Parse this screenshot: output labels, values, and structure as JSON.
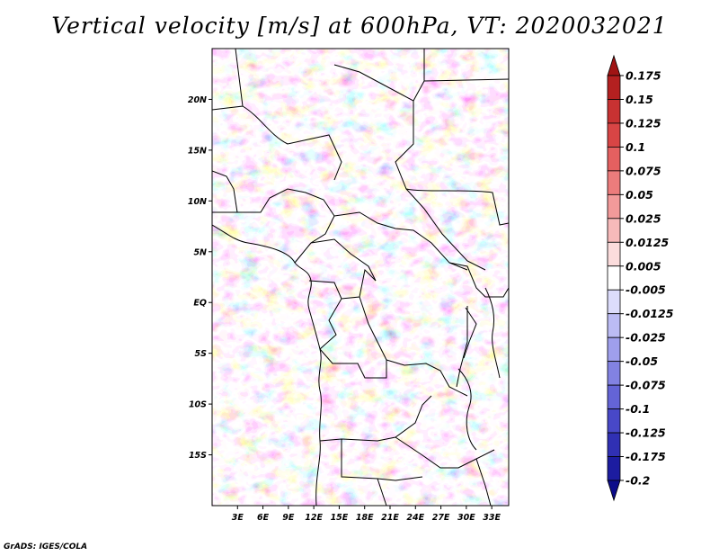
{
  "title": "Vertical velocity [m/s] at 600hPa, VT: 2020032021",
  "credit": "GrADS: IGES/COLA",
  "chart_data": {
    "type": "heatmap",
    "title": "Vertical velocity [m/s] at 600hPa, VT: 2020032021",
    "variable": "vertical velocity",
    "units": "m/s",
    "level": "600hPa",
    "valid_time": "2020032021",
    "lon_range": [
      0,
      35
    ],
    "lat_range": [
      -20,
      25
    ],
    "lat_ticks": [
      {
        "value": 20,
        "label": "20N"
      },
      {
        "value": 15,
        "label": "15N"
      },
      {
        "value": 10,
        "label": "10N"
      },
      {
        "value": 5,
        "label": "5N"
      },
      {
        "value": 0,
        "label": "EQ"
      },
      {
        "value": -5,
        "label": "5S"
      },
      {
        "value": -10,
        "label": "10S"
      },
      {
        "value": -15,
        "label": "15S"
      }
    ],
    "lon_ticks": [
      {
        "value": 3,
        "label": "3E"
      },
      {
        "value": 6,
        "label": "6E"
      },
      {
        "value": 9,
        "label": "9E"
      },
      {
        "value": 12,
        "label": "12E"
      },
      {
        "value": 15,
        "label": "15E"
      },
      {
        "value": 18,
        "label": "18E"
      },
      {
        "value": 21,
        "label": "21E"
      },
      {
        "value": 24,
        "label": "24E"
      },
      {
        "value": 27,
        "label": "27E"
      },
      {
        "value": 30,
        "label": "30E"
      },
      {
        "value": 33,
        "label": "33E"
      }
    ],
    "colorbar": {
      "labels": [
        "0.175",
        "0.15",
        "0.125",
        "0.1",
        "0.075",
        "0.05",
        "0.025",
        "0.0125",
        "0.005",
        "-0.005",
        "-0.0125",
        "-0.025",
        "-0.05",
        "-0.075",
        "-0.1",
        "-0.125",
        "-0.175",
        "-0.2"
      ],
      "colors": [
        "#a01414",
        "#b42020",
        "#c83232",
        "#d84545",
        "#e46060",
        "#ec7c7c",
        "#f29a9a",
        "#f7baba",
        "#fbdcdc",
        "#ffffff",
        "#dcdcfb",
        "#bcbcf4",
        "#9f9fec",
        "#8282e2",
        "#6464d6",
        "#4848c8",
        "#3030b4",
        "#1c1ca0",
        "#0c0c8a"
      ]
    }
  }
}
